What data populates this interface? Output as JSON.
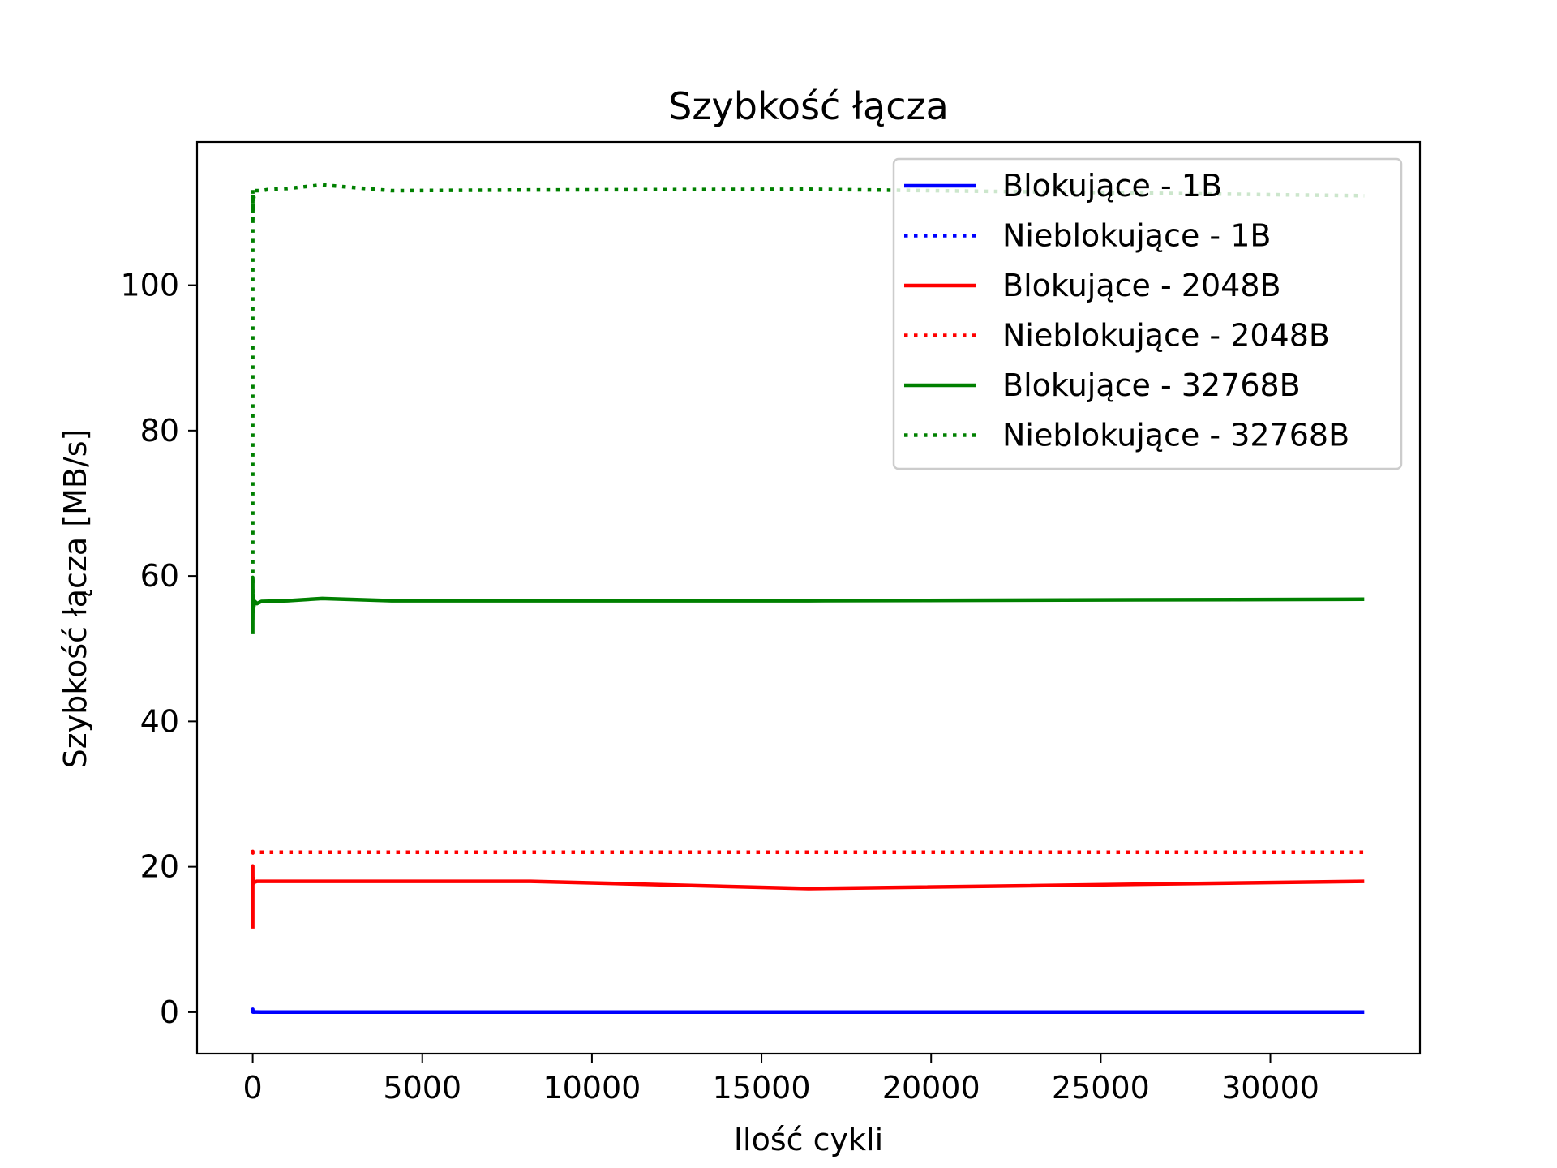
{
  "chart_data": {
    "type": "line",
    "title": "Szybkość łącza",
    "xlabel": "Ilość cykli",
    "ylabel": "Szybkość łącza [MB/s]",
    "xlim": [
      -1640,
      34410
    ],
    "ylim": [
      -5.7,
      119.7
    ],
    "xticks": [
      0,
      5000,
      10000,
      15000,
      20000,
      25000,
      30000
    ],
    "yticks": [
      0,
      20,
      40,
      60,
      80,
      100
    ],
    "x_tick_labels": [
      "0",
      "5000",
      "10000",
      "15000",
      "20000",
      "25000",
      "30000"
    ],
    "y_tick_labels": [
      "0",
      "20",
      "40",
      "60",
      "80",
      "100"
    ],
    "grid": false,
    "legend_position": "top-right",
    "series": [
      {
        "name": "Blokujące - 1B",
        "color": "#0000ff",
        "style": "solid",
        "points": [
          [
            0,
            0.2
          ],
          [
            1,
            0.4
          ],
          [
            2,
            0.1
          ],
          [
            4,
            0.05
          ],
          [
            16,
            0.03
          ],
          [
            64,
            0.03
          ],
          [
            256,
            0.02
          ],
          [
            1024,
            0.02
          ],
          [
            2048,
            0.02
          ],
          [
            4096,
            0.02
          ],
          [
            8192,
            0.02
          ],
          [
            16384,
            0.02
          ],
          [
            32768,
            0.02
          ]
        ]
      },
      {
        "name": "Nieblokujące - 1B",
        "color": "#0000ff",
        "style": "dotted",
        "points": [
          [
            0,
            0.3
          ],
          [
            1,
            0.2
          ],
          [
            2,
            0.1
          ],
          [
            4,
            0.05
          ],
          [
            16,
            0.03
          ],
          [
            64,
            0.03
          ],
          [
            256,
            0.02
          ],
          [
            1024,
            0.02
          ],
          [
            2048,
            0.02
          ],
          [
            4096,
            0.02
          ],
          [
            8192,
            0.02
          ],
          [
            16384,
            0.02
          ],
          [
            32768,
            0.02
          ]
        ]
      },
      {
        "name": "Blokujące - 2048B",
        "color": "#ff0000",
        "style": "solid",
        "points": [
          [
            0,
            11.5
          ],
          [
            1,
            20.1
          ],
          [
            2,
            18.2
          ],
          [
            4,
            17.6
          ],
          [
            8,
            18.5
          ],
          [
            16,
            17.8
          ],
          [
            32,
            18.0
          ],
          [
            64,
            17.9
          ],
          [
            128,
            18.0
          ],
          [
            256,
            18.0
          ],
          [
            1024,
            18.0
          ],
          [
            2048,
            18.0
          ],
          [
            4096,
            18.0
          ],
          [
            8192,
            18.0
          ],
          [
            16384,
            17.0
          ],
          [
            32768,
            18.0
          ]
        ]
      },
      {
        "name": "Nieblokujące - 2048B",
        "color": "#ff0000",
        "style": "dotted",
        "points": [
          [
            0,
            22.0
          ],
          [
            1,
            22.1
          ],
          [
            4,
            21.9
          ],
          [
            16,
            22.0
          ],
          [
            64,
            22.0
          ],
          [
            256,
            22.0
          ],
          [
            1024,
            22.0
          ],
          [
            2048,
            22.0
          ],
          [
            4096,
            22.0
          ],
          [
            8192,
            22.0
          ],
          [
            16384,
            22.0
          ],
          [
            32768,
            22.0
          ]
        ]
      },
      {
        "name": "Blokujące - 32768B",
        "color": "#008000",
        "style": "solid",
        "points": [
          [
            0,
            52.0
          ],
          [
            1,
            59.8
          ],
          [
            2,
            54.0
          ],
          [
            4,
            57.5
          ],
          [
            8,
            55.0
          ],
          [
            16,
            56.8
          ],
          [
            32,
            55.8
          ],
          [
            64,
            56.5
          ],
          [
            128,
            56.2
          ],
          [
            256,
            56.5
          ],
          [
            1024,
            56.6
          ],
          [
            2048,
            56.9
          ],
          [
            4096,
            56.6
          ],
          [
            8192,
            56.6
          ],
          [
            16384,
            56.6
          ],
          [
            32768,
            56.8
          ]
        ]
      },
      {
        "name": "Nieblokujące - 32768B",
        "color": "#008000",
        "style": "dotted",
        "points": [
          [
            0,
            55.0
          ],
          [
            1,
            113.5
          ],
          [
            2,
            109.0
          ],
          [
            4,
            112.5
          ],
          [
            8,
            110.0
          ],
          [
            16,
            112.8
          ],
          [
            32,
            112.0
          ],
          [
            64,
            113.0
          ],
          [
            128,
            113.0
          ],
          [
            256,
            113.0
          ],
          [
            512,
            113.2
          ],
          [
            1024,
            113.3
          ],
          [
            2048,
            113.8
          ],
          [
            4096,
            113.0
          ],
          [
            8192,
            113.1
          ],
          [
            16384,
            113.2
          ],
          [
            32768,
            112.3
          ]
        ]
      }
    ]
  }
}
